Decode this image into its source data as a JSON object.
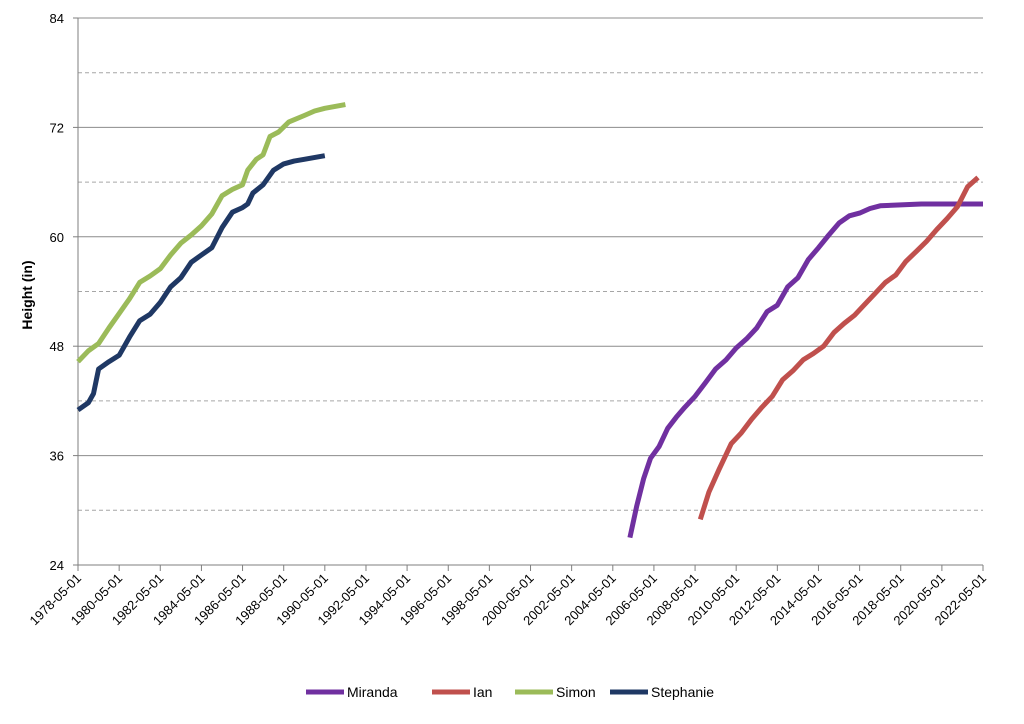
{
  "chart_data": {
    "type": "line",
    "title": "",
    "xlabel": "",
    "ylabel": "Height (in)",
    "ylim": [
      24,
      84
    ],
    "y_major_ticks": [
      24,
      36,
      48,
      60,
      72,
      84
    ],
    "y_minor_gridlines": [
      30,
      42,
      54,
      66,
      78
    ],
    "xlim": [
      "1978-05-01",
      "2022-05-01"
    ],
    "x_ticks": [
      "1978-05-01",
      "1980-05-01",
      "1982-05-01",
      "1984-05-01",
      "1986-05-01",
      "1988-05-01",
      "1990-05-01",
      "1992-05-01",
      "1994-05-01",
      "1996-05-01",
      "1998-05-01",
      "2000-05-01",
      "2002-05-01",
      "2004-05-01",
      "2006-05-01",
      "2008-05-01",
      "2010-05-01",
      "2012-05-01",
      "2014-05-01",
      "2016-05-01",
      "2018-05-01",
      "2020-05-01",
      "2022-05-01"
    ],
    "grid": true,
    "legend_position": "bottom",
    "series": [
      {
        "name": "Miranda",
        "color": "#7030A0",
        "points": [
          [
            "2005-03-01",
            27.0
          ],
          [
            "2005-07-01",
            30.5
          ],
          [
            "2005-11-01",
            33.5
          ],
          [
            "2006-03-01",
            35.7
          ],
          [
            "2006-08-01",
            37.0
          ],
          [
            "2007-01-01",
            39.0
          ],
          [
            "2007-06-01",
            40.2
          ],
          [
            "2007-11-01",
            41.3
          ],
          [
            "2008-05-01",
            42.5
          ],
          [
            "2008-11-01",
            44.0
          ],
          [
            "2009-05-01",
            45.5
          ],
          [
            "2009-11-01",
            46.5
          ],
          [
            "2010-05-01",
            47.8
          ],
          [
            "2010-11-01",
            48.8
          ],
          [
            "2011-05-01",
            50.0
          ],
          [
            "2011-11-01",
            51.8
          ],
          [
            "2012-05-01",
            52.5
          ],
          [
            "2012-11-01",
            54.5
          ],
          [
            "2013-05-01",
            55.5
          ],
          [
            "2013-11-01",
            57.5
          ],
          [
            "2014-05-01",
            58.8
          ],
          [
            "2014-11-01",
            60.2
          ],
          [
            "2015-05-01",
            61.5
          ],
          [
            "2015-11-01",
            62.3
          ],
          [
            "2016-05-01",
            62.6
          ],
          [
            "2016-11-01",
            63.1
          ],
          [
            "2017-05-01",
            63.4
          ],
          [
            "2018-05-01",
            63.5
          ],
          [
            "2019-05-01",
            63.6
          ],
          [
            "2020-05-01",
            63.6
          ],
          [
            "2021-05-01",
            63.6
          ],
          [
            "2022-05-01",
            63.6
          ]
        ]
      },
      {
        "name": "Ian",
        "color": "#C0504D",
        "points": [
          [
            "2008-08-01",
            29.0
          ],
          [
            "2009-01-01",
            32.0
          ],
          [
            "2009-07-01",
            34.5
          ],
          [
            "2010-02-01",
            37.3
          ],
          [
            "2010-08-01",
            38.5
          ],
          [
            "2011-02-01",
            40.0
          ],
          [
            "2011-08-01",
            41.3
          ],
          [
            "2012-02-01",
            42.5
          ],
          [
            "2012-08-01",
            44.3
          ],
          [
            "2013-02-01",
            45.3
          ],
          [
            "2013-08-01",
            46.5
          ],
          [
            "2014-02-01",
            47.2
          ],
          [
            "2014-08-01",
            48.0
          ],
          [
            "2015-02-01",
            49.5
          ],
          [
            "2015-08-01",
            50.5
          ],
          [
            "2016-02-01",
            51.4
          ],
          [
            "2016-08-01",
            52.6
          ],
          [
            "2017-02-01",
            53.8
          ],
          [
            "2017-08-01",
            55.0
          ],
          [
            "2018-02-01",
            55.8
          ],
          [
            "2018-08-01",
            57.3
          ],
          [
            "2019-02-01",
            58.4
          ],
          [
            "2019-08-01",
            59.5
          ],
          [
            "2020-02-01",
            60.8
          ],
          [
            "2020-08-01",
            62.0
          ],
          [
            "2021-02-01",
            63.3
          ],
          [
            "2021-08-01",
            65.5
          ],
          [
            "2022-02-01",
            66.5
          ]
        ]
      },
      {
        "name": "Simon",
        "color": "#9BBB59",
        "points": [
          [
            "1978-05-01",
            46.3
          ],
          [
            "1978-11-01",
            47.5
          ],
          [
            "1979-05-01",
            48.3
          ],
          [
            "1979-11-01",
            50.0
          ],
          [
            "1980-05-01",
            51.6
          ],
          [
            "1980-11-01",
            53.2
          ],
          [
            "1981-05-01",
            55.0
          ],
          [
            "1981-11-01",
            55.7
          ],
          [
            "1982-05-01",
            56.5
          ],
          [
            "1982-11-01",
            58.0
          ],
          [
            "1983-05-01",
            59.3
          ],
          [
            "1983-11-01",
            60.2
          ],
          [
            "1984-05-01",
            61.2
          ],
          [
            "1984-11-01",
            62.5
          ],
          [
            "1985-05-01",
            64.5
          ],
          [
            "1985-11-01",
            65.2
          ],
          [
            "1986-05-01",
            65.7
          ],
          [
            "1986-08-01",
            67.3
          ],
          [
            "1987-01-01",
            68.5
          ],
          [
            "1987-05-01",
            69.0
          ],
          [
            "1987-09-01",
            71.0
          ],
          [
            "1988-02-01",
            71.5
          ],
          [
            "1988-08-01",
            72.6
          ],
          [
            "1989-05-01",
            73.3
          ],
          [
            "1989-11-01",
            73.8
          ],
          [
            "1990-05-01",
            74.1
          ],
          [
            "1991-05-01",
            74.5
          ]
        ]
      },
      {
        "name": "Stephanie",
        "color": "#1F3864",
        "points": [
          [
            "1978-05-01",
            41.0
          ],
          [
            "1978-11-01",
            41.8
          ],
          [
            "1979-02-01",
            42.8
          ],
          [
            "1979-05-01",
            45.5
          ],
          [
            "1979-11-01",
            46.3
          ],
          [
            "1980-05-01",
            47.0
          ],
          [
            "1980-11-01",
            49.0
          ],
          [
            "1981-05-01",
            50.8
          ],
          [
            "1981-11-01",
            51.5
          ],
          [
            "1982-05-01",
            52.8
          ],
          [
            "1982-11-01",
            54.5
          ],
          [
            "1983-05-01",
            55.5
          ],
          [
            "1983-11-01",
            57.2
          ],
          [
            "1984-05-01",
            58.0
          ],
          [
            "1984-11-01",
            58.8
          ],
          [
            "1985-05-01",
            61.0
          ],
          [
            "1985-11-01",
            62.7
          ],
          [
            "1986-05-01",
            63.2
          ],
          [
            "1986-08-01",
            63.6
          ],
          [
            "1986-11-01",
            64.8
          ],
          [
            "1987-05-01",
            65.7
          ],
          [
            "1987-11-01",
            67.3
          ],
          [
            "1988-05-01",
            68.0
          ],
          [
            "1988-11-01",
            68.3
          ],
          [
            "1989-05-01",
            68.5
          ],
          [
            "1990-05-01",
            68.9
          ]
        ]
      }
    ]
  }
}
